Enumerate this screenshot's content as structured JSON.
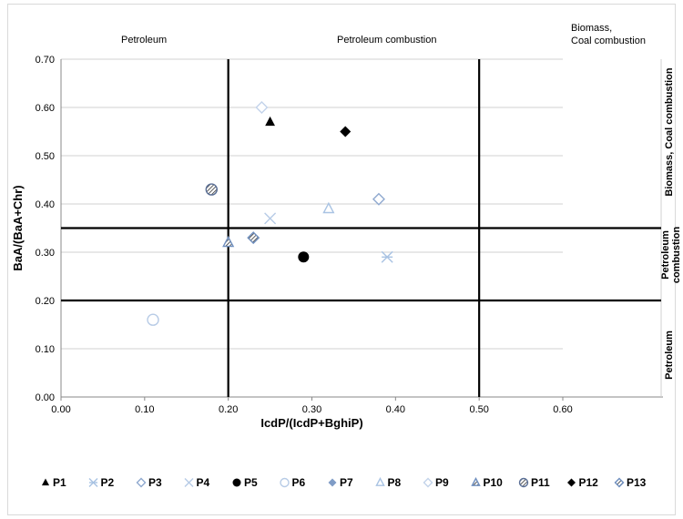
{
  "chart_data": {
    "type": "scatter",
    "xlabel": "IcdP/(IcdP+BghiP)",
    "ylabel": "BaA/(BaA+Chr)",
    "xlim": [
      0,
      0.6
    ],
    "ylim": [
      0,
      0.7
    ],
    "x_ticks": [
      "0.00",
      "0.10",
      "0.20",
      "0.30",
      "0.40",
      "0.50",
      "0.60"
    ],
    "y_ticks": [
      "0.00",
      "0.10",
      "0.20",
      "0.30",
      "0.40",
      "0.50",
      "0.60",
      "0.70"
    ],
    "grid": "horizontal",
    "legend_placement": "bottom",
    "reference_lines": {
      "x": [
        0.2,
        0.5
      ],
      "y": [
        0.2,
        0.35
      ]
    },
    "top_regions": [
      {
        "label": "Petroleum",
        "x_range": [
          0,
          0.2
        ]
      },
      {
        "label": "Petroleum combustion",
        "x_range": [
          0.2,
          0.5
        ]
      },
      {
        "label": "Biomass, Coal combustion",
        "x_range": [
          0.5,
          0.6
        ]
      }
    ],
    "right_regions": [
      {
        "label": "Biomass, Coal combustion",
        "y_range": [
          0.35,
          0.7
        ]
      },
      {
        "label": "Petroleum combustion",
        "y_range": [
          0.2,
          0.35
        ]
      },
      {
        "label": "Petroleum",
        "y_range": [
          0,
          0.2
        ]
      }
    ],
    "series": [
      {
        "name": "P1",
        "x": 0.25,
        "y": 0.57,
        "marker": "triangle-filled",
        "color": "#000000"
      },
      {
        "name": "P2",
        "x": 0.39,
        "y": 0.29,
        "marker": "asterisk",
        "color": "#a9c3e3"
      },
      {
        "name": "P3",
        "x": 0.38,
        "y": 0.41,
        "marker": "diamond-open",
        "color": "#8fa9cf"
      },
      {
        "name": "P4",
        "x": 0.25,
        "y": 0.37,
        "marker": "x",
        "color": "#b7cbe6"
      },
      {
        "name": "P5",
        "x": 0.29,
        "y": 0.29,
        "marker": "circle-filled",
        "color": "#000000"
      },
      {
        "name": "P6",
        "x": 0.11,
        "y": 0.16,
        "marker": "circle-open",
        "color": "#b7cbe6"
      },
      {
        "name": "P7",
        "x": 0.23,
        "y": 0.33,
        "marker": "diamond-filled",
        "color": "#7f9cc6"
      },
      {
        "name": "P8",
        "x": 0.32,
        "y": 0.39,
        "marker": "triangle-open",
        "color": "#a9c3e3"
      },
      {
        "name": "P9",
        "x": 0.24,
        "y": 0.6,
        "marker": "diamond-open",
        "color": "#c3d3ea"
      },
      {
        "name": "P10",
        "x": 0.2,
        "y": 0.32,
        "marker": "triangle-striped",
        "color": "#6f8fbf"
      },
      {
        "name": "P11",
        "x": 0.18,
        "y": 0.43,
        "marker": "circle-striped",
        "color": "#5a6f96"
      },
      {
        "name": "P12",
        "x": 0.34,
        "y": 0.55,
        "marker": "diamond-filled",
        "color": "#000000"
      },
      {
        "name": "P13",
        "x": 0.23,
        "y": 0.33,
        "marker": "diamond-striped",
        "color": "#6f8fbf"
      }
    ]
  }
}
